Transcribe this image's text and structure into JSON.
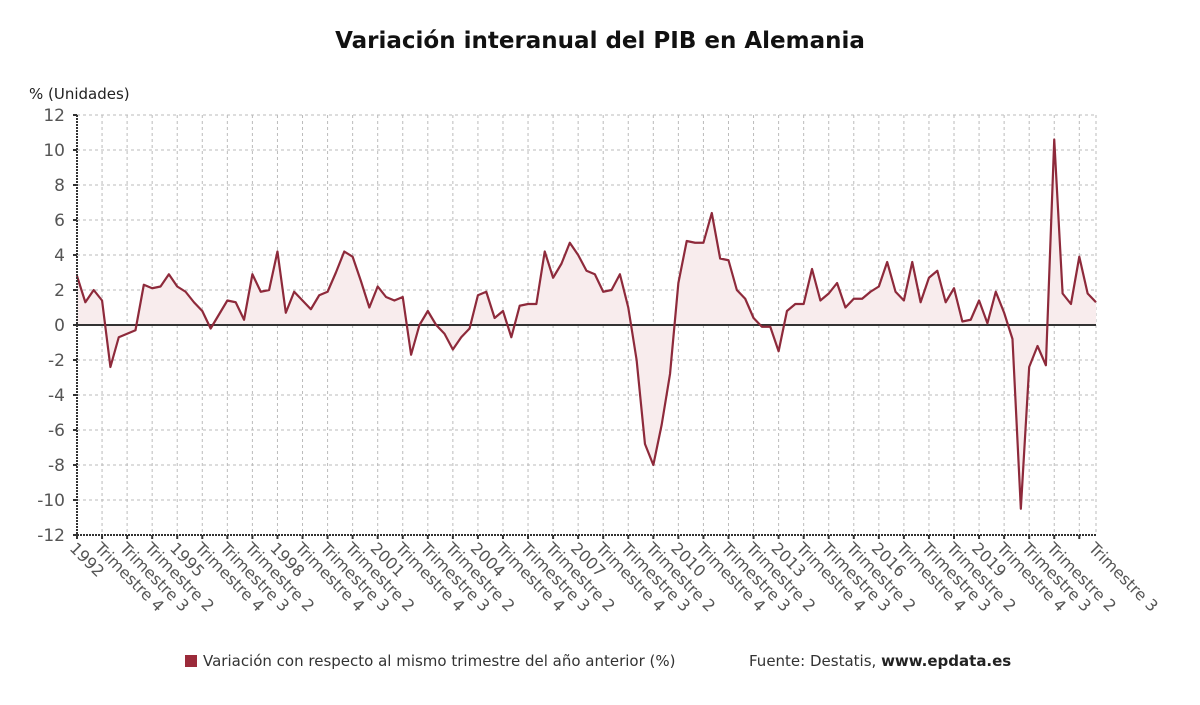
{
  "colors": {
    "line": "#8e2a3b",
    "fill": "#f8eced",
    "swatch": "#9b2a3a",
    "grid": "#bbbbbb",
    "axis": "#333333"
  },
  "legend": {
    "label": "Variación con respecto al mismo trimestre del año anterior (%)"
  },
  "source": {
    "prefix": "Fuente: Destatis, ",
    "site": "www.epdata.es"
  },
  "chart_data": {
    "type": "area",
    "title": "Variación interanual del PIB en Alemania",
    "ylabel": "% (Unidades)",
    "xlabel": "",
    "ylim": [
      -12,
      12
    ],
    "yticks": [
      12,
      10,
      8,
      6,
      4,
      2,
      0,
      -2,
      -4,
      -6,
      -8,
      -10,
      -12
    ],
    "grid": true,
    "legend_position": "bottom",
    "x_start": "1992 Trimestre 1",
    "x_end": "2022 Trimestre 3",
    "x_tick_labels": [
      {
        "index": 0,
        "label": "1992"
      },
      {
        "index": 3,
        "label": "Trimestre 4"
      },
      {
        "index": 6,
        "label": "Trimestre 3"
      },
      {
        "index": 9,
        "label": "Trimestre 2"
      },
      {
        "index": 12,
        "label": "1995"
      },
      {
        "index": 15,
        "label": "Trimestre 4"
      },
      {
        "index": 18,
        "label": "Trimestre 3"
      },
      {
        "index": 21,
        "label": "Trimestre 2"
      },
      {
        "index": 24,
        "label": "1998"
      },
      {
        "index": 27,
        "label": "Trimestre 4"
      },
      {
        "index": 30,
        "label": "Trimestre 3"
      },
      {
        "index": 33,
        "label": "Trimestre 2"
      },
      {
        "index": 36,
        "label": "2001"
      },
      {
        "index": 39,
        "label": "Trimestre 4"
      },
      {
        "index": 42,
        "label": "Trimestre 3"
      },
      {
        "index": 45,
        "label": "Trimestre 2"
      },
      {
        "index": 48,
        "label": "2004"
      },
      {
        "index": 51,
        "label": "Trimestre 4"
      },
      {
        "index": 54,
        "label": "Trimestre 3"
      },
      {
        "index": 57,
        "label": "Trimestre 2"
      },
      {
        "index": 60,
        "label": "2007"
      },
      {
        "index": 63,
        "label": "Trimestre 4"
      },
      {
        "index": 66,
        "label": "Trimestre 3"
      },
      {
        "index": 69,
        "label": "Trimestre 2"
      },
      {
        "index": 72,
        "label": "2010"
      },
      {
        "index": 75,
        "label": "Trimestre 4"
      },
      {
        "index": 78,
        "label": "Trimestre 3"
      },
      {
        "index": 81,
        "label": "Trimestre 2"
      },
      {
        "index": 84,
        "label": "2013"
      },
      {
        "index": 87,
        "label": "Trimestre 4"
      },
      {
        "index": 90,
        "label": "Trimestre 3"
      },
      {
        "index": 93,
        "label": "Trimestre 2"
      },
      {
        "index": 96,
        "label": "2016"
      },
      {
        "index": 99,
        "label": "Trimestre 4"
      },
      {
        "index": 102,
        "label": "Trimestre 3"
      },
      {
        "index": 105,
        "label": "Trimestre 2"
      },
      {
        "index": 108,
        "label": "2019"
      },
      {
        "index": 111,
        "label": "Trimestre 4"
      },
      {
        "index": 114,
        "label": "Trimestre 3"
      },
      {
        "index": 117,
        "label": "Trimestre 2"
      },
      {
        "index": 122,
        "label": "Trimestre 3"
      }
    ],
    "series": [
      {
        "name": "Variación con respecto al mismo trimestre del año anterior (%)",
        "values": [
          2.8,
          1.3,
          2.0,
          1.4,
          -2.4,
          -0.7,
          -0.5,
          -0.3,
          2.3,
          2.1,
          2.2,
          2.9,
          2.2,
          1.9,
          1.3,
          0.8,
          -0.2,
          0.6,
          1.4,
          1.3,
          0.3,
          2.9,
          1.9,
          2.0,
          4.2,
          0.7,
          1.9,
          1.4,
          0.9,
          1.7,
          1.9,
          3.0,
          4.2,
          3.9,
          2.5,
          1.0,
          2.2,
          1.6,
          1.4,
          1.6,
          -1.7,
          0.0,
          0.8,
          0.0,
          -0.5,
          -1.4,
          -0.7,
          -0.2,
          1.7,
          1.9,
          0.4,
          0.8,
          -0.7,
          1.1,
          1.2,
          1.2,
          4.2,
          2.7,
          3.5,
          4.7,
          4.0,
          3.1,
          2.9,
          1.9,
          2.0,
          2.9,
          1.0,
          -2.0,
          -6.8,
          -8.0,
          -5.7,
          -2.8,
          2.4,
          4.8,
          4.7,
          4.7,
          6.4,
          3.8,
          3.7,
          2.0,
          1.5,
          0.4,
          -0.1,
          -0.1,
          -1.5,
          0.8,
          1.2,
          1.2,
          3.2,
          1.4,
          1.8,
          2.4,
          1.0,
          1.5,
          1.5,
          1.9,
          2.2,
          3.6,
          1.9,
          1.4,
          3.6,
          1.3,
          2.7,
          3.1,
          1.3,
          2.1,
          0.2,
          0.3,
          1.4,
          0.1,
          1.9,
          0.7,
          -0.8,
          -10.5,
          -2.4,
          -1.2,
          -2.3,
          10.6,
          1.8,
          1.2,
          3.9,
          1.8,
          1.3
        ]
      }
    ]
  }
}
